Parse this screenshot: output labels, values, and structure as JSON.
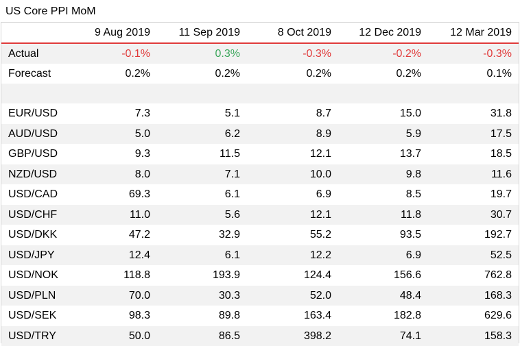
{
  "title": "US Core PPI MoM",
  "columns": [
    "9 Aug 2019",
    "11 Sep 2019",
    "8 Oct 2019",
    "12 Dec 2019",
    "12 Mar 2019"
  ],
  "actual": {
    "label": "Actual",
    "values": [
      "-0.1%",
      "0.3%",
      "-0.3%",
      "-0.2%",
      "-0.3%"
    ],
    "signs": [
      "neg",
      "pos",
      "neg",
      "neg",
      "neg"
    ]
  },
  "forecast": {
    "label": "Forecast",
    "values": [
      "0.2%",
      "0.2%",
      "0.2%",
      "0.2%",
      "0.1%"
    ]
  },
  "pairs": [
    {
      "label": "EUR/USD",
      "values": [
        "7.3",
        "5.1",
        "8.7",
        "15.0",
        "31.8"
      ]
    },
    {
      "label": "AUD/USD",
      "values": [
        "5.0",
        "6.2",
        "8.9",
        "5.9",
        "17.5"
      ]
    },
    {
      "label": "GBP/USD",
      "values": [
        "9.3",
        "11.5",
        "12.1",
        "13.7",
        "18.5"
      ]
    },
    {
      "label": "NZD/USD",
      "values": [
        "8.0",
        "7.1",
        "10.0",
        "9.8",
        "11.6"
      ]
    },
    {
      "label": "USD/CAD",
      "values": [
        "69.3",
        "6.1",
        "6.9",
        "8.5",
        "19.7"
      ]
    },
    {
      "label": "USD/CHF",
      "values": [
        "11.0",
        "5.6",
        "12.1",
        "11.8",
        "30.7"
      ]
    },
    {
      "label": "USD/DKK",
      "values": [
        "47.2",
        "32.9",
        "55.2",
        "93.5",
        "192.7"
      ]
    },
    {
      "label": "USD/JPY",
      "values": [
        "12.4",
        "6.1",
        "12.2",
        "6.9",
        "52.5"
      ]
    },
    {
      "label": "USD/NOK",
      "values": [
        "118.8",
        "193.9",
        "124.4",
        "156.6",
        "762.8"
      ]
    },
    {
      "label": "USD/PLN",
      "values": [
        "70.0",
        "30.3",
        "52.0",
        "48.4",
        "168.3"
      ]
    },
    {
      "label": "USD/SEK",
      "values": [
        "98.3",
        "89.8",
        "163.4",
        "182.8",
        "629.6"
      ]
    },
    {
      "label": "USD/TRY",
      "values": [
        "50.0",
        "86.5",
        "398.2",
        "74.1",
        "158.3"
      ]
    }
  ]
}
